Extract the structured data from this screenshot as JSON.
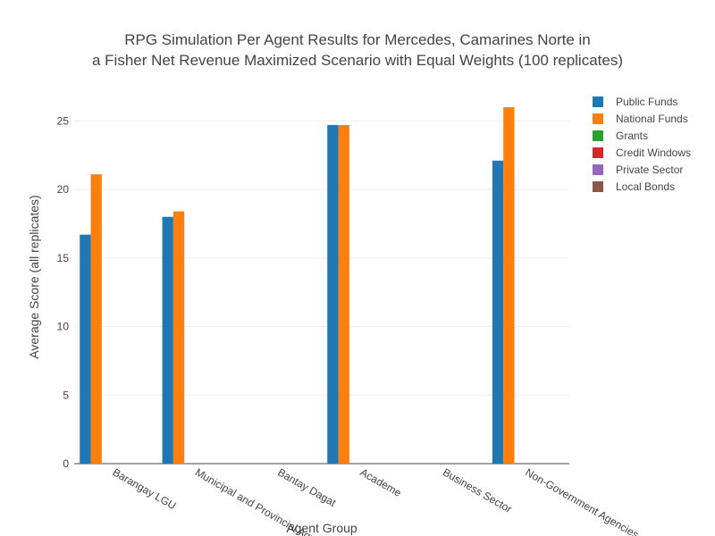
{
  "chart_data": {
    "type": "bar",
    "title": [
      "RPG Simulation Per Agent Results for Mercedes, Camarines Norte in",
      "a Fisher Net Revenue Maximized Scenario with Equal Weights (100 replicates)"
    ],
    "x_label": "Agent Group",
    "y_label": "Average Score (all replicates)",
    "categories": [
      "Barangay LGU",
      "Municipal and Provincial Agr.",
      "Bantay Dagat",
      "Academe",
      "Business Sector",
      "Non-Government Agencies"
    ],
    "series": [
      {
        "name": "Public Funds",
        "color": "#1f77b4",
        "values": [
          16.7,
          18.0,
          null,
          24.7,
          null,
          22.1
        ]
      },
      {
        "name": "National Funds",
        "color": "#ff7f0e",
        "values": [
          21.1,
          18.4,
          null,
          24.7,
          null,
          26.0
        ]
      },
      {
        "name": "Grants",
        "color": "#2ca02c",
        "values": [
          null,
          null,
          null,
          null,
          null,
          null
        ]
      },
      {
        "name": "Credit Windows",
        "color": "#d62728",
        "values": [
          null,
          null,
          null,
          null,
          null,
          null
        ]
      },
      {
        "name": "Private Sector",
        "color": "#9467bd",
        "values": [
          null,
          null,
          null,
          null,
          null,
          null
        ]
      },
      {
        "name": "Local Bonds",
        "color": "#8c564b",
        "values": [
          null,
          null,
          null,
          null,
          null,
          null
        ]
      }
    ],
    "ylim": [
      0,
      27.3
    ],
    "yticks": [
      0,
      5,
      10,
      15,
      20,
      25
    ],
    "grid": true,
    "legend": "top-right"
  }
}
